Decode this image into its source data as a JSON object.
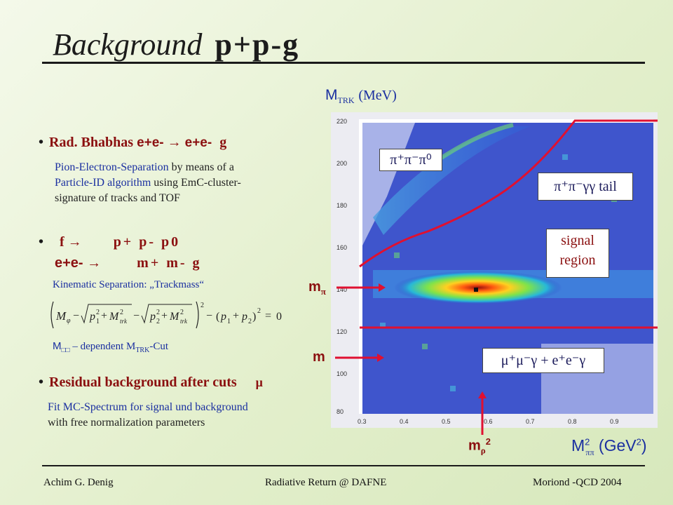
{
  "slide": {
    "title_word": "Background",
    "title_symbols": "p+p-g"
  },
  "section1": {
    "bullet_label": "Rad. Bhabhas",
    "reaction_initial": "e+e-",
    "reaction_arrow": "→",
    "reaction_final": "e+e-",
    "reaction_gamma": "g",
    "description_line1_blue": "Pion-Electron-Separation",
    "description_line1_dark": " by means of a",
    "description_line2_blue": "Particle-ID algorithm",
    "description_line2_dark": " using EmC-cluster-",
    "description_line3": "signature of tracks and TOF"
  },
  "section2": {
    "phi_decay": "f →",
    "phi_products": "p+ p- p0",
    "ee_decay": "e+e- →",
    "ee_products": "m+ m- g",
    "kinematic_label": "Kinematic Separation:  „Trackmass“",
    "formula": "(M_φ − √(p₁² + M²_trk) − √(p₂² + M²_trk))² − (p₁ + p₂)² = 0",
    "mcut_prefix": "M",
    "mcut_sub": "□□",
    "mcut_middle": " – dependent M",
    "mcut_sub2": "TRK",
    "mcut_suffix": "-Cut"
  },
  "section3": {
    "bullet_label": "Residual background after cuts",
    "mu_symbol": "μ",
    "description_line1": "Fit MC-Spectrum for signal und background",
    "description_line2": "with free normalization parameters"
  },
  "plot": {
    "y_axis_title": "M",
    "y_axis_sub": "TRK",
    "y_axis_unit": "(MeV)",
    "x_axis_title": "M",
    "x_axis_sub": "ππ",
    "x_axis_unit": "(GeV",
    "x_axis_unit_close": ")",
    "y_ticks": [
      "220",
      "200",
      "180",
      "160",
      "140",
      "120",
      "100",
      "80"
    ],
    "x_ticks": [
      "0.3",
      "0.4",
      "0.5",
      "0.6",
      "0.7",
      "0.8",
      "0.9"
    ],
    "label_3pi": "π⁺π⁻π⁰",
    "label_tail": "π⁺π⁻γγ tail",
    "label_signal_line1": "signal",
    "label_signal_line2": "region",
    "label_mumu": "μ⁺μ⁻γ  + e⁺e⁻γ",
    "marker_mpi": "m",
    "marker_mpi_sub": "π",
    "marker_m": "m",
    "marker_mrho": "m",
    "marker_mrho_sub": "ρ",
    "marker_mrho_sup": "2"
  },
  "colors": {
    "accent_red": "#e01030",
    "title_red": "#8b1010",
    "text_blue": "#1a2fa0",
    "plot_blue": "#2f46c8"
  },
  "footer": {
    "left": "Achim G. Denig",
    "center": "Radiative Return @ DAFNE",
    "right": "Moriond -QCD 2004"
  }
}
